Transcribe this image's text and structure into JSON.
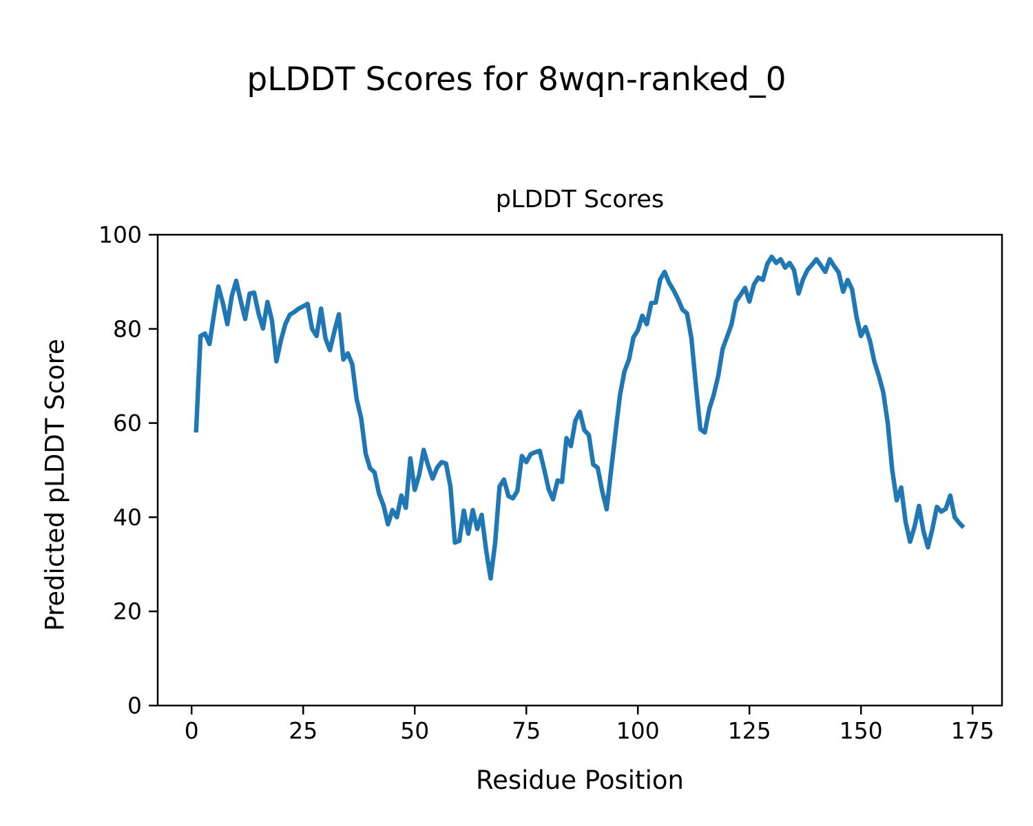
{
  "figure": {
    "suptitle": "pLDDT Scores for 8wqn-ranked_0",
    "background_color": "#ffffff",
    "text_color": "#000000"
  },
  "chart_data": {
    "type": "line",
    "title": "pLDDT Scores",
    "xlabel": "Residue Position",
    "ylabel": "Predicted pLDDT Score",
    "legend": "none",
    "grid": false,
    "line_color": "#1f77b4",
    "spine_color": "#000000",
    "xlim": [
      -7.6,
      181.6
    ],
    "ylim": [
      0,
      100
    ],
    "x_ticks": [
      0,
      25,
      50,
      75,
      100,
      125,
      150,
      175
    ],
    "y_ticks": [
      0,
      20,
      40,
      60,
      80,
      100
    ],
    "n_points": 173,
    "x_start": 1,
    "x_step": 1,
    "values": [
      58,
      78.5,
      79,
      76.8,
      83,
      89,
      85.5,
      81,
      87,
      90.2,
      86,
      82.1,
      87.5,
      87.7,
      83.3,
      80.1,
      85.7,
      81.8,
      73.1,
      77.5,
      81,
      83,
      83.6,
      84.3,
      84.8,
      85.3,
      80,
      78.5,
      84.3,
      78,
      75.5,
      79.5,
      83.1,
      73.5,
      74.8,
      72.5,
      65,
      61,
      53.5,
      50.4,
      49.5,
      45,
      42.5,
      38.5,
      41.5,
      40,
      44.6,
      42,
      52.5,
      45.8,
      49,
      54.3,
      51,
      48.2,
      50.5,
      51.7,
      51.4,
      46.5,
      34.6,
      35,
      41.4,
      36.5,
      41.5,
      37.5,
      40.5,
      33,
      27,
      34.4,
      46.5,
      48,
      44.5,
      44,
      45.6,
      53,
      51.7,
      53.4,
      53.8,
      54.1,
      50.2,
      46,
      43.8,
      47.8,
      47.5,
      56.8,
      55.1,
      60.5,
      62.4,
      58.5,
      57.5,
      51.2,
      50.5,
      45.6,
      41.7,
      50,
      58,
      66,
      71,
      73.5,
      78.2,
      79.7,
      82.8,
      81,
      85.5,
      85.6,
      90.5,
      92.1,
      89.8,
      88.2,
      86.3,
      84.1,
      83.3,
      78,
      68,
      58.7,
      58,
      63,
      66,
      70,
      75.8,
      78.3,
      81,
      85.8,
      87.2,
      88.7,
      85.8,
      89.4,
      90.9,
      90.4,
      93.8,
      95.3,
      94,
      94.8,
      93,
      94,
      92.5,
      87.5,
      90.5,
      92.5,
      93.6,
      94.8,
      93.5,
      92.1,
      94.8,
      93.3,
      92,
      87.9,
      90.4,
      88.4,
      82.5,
      78.5,
      80.4,
      77.5,
      73,
      70,
      66.5,
      60,
      50,
      43.6,
      46.3,
      39,
      34.8,
      38,
      42.4,
      37,
      33.6,
      37.5,
      42.2,
      41.2,
      41.8,
      44.6,
      40,
      38.8,
      37.8
    ]
  }
}
